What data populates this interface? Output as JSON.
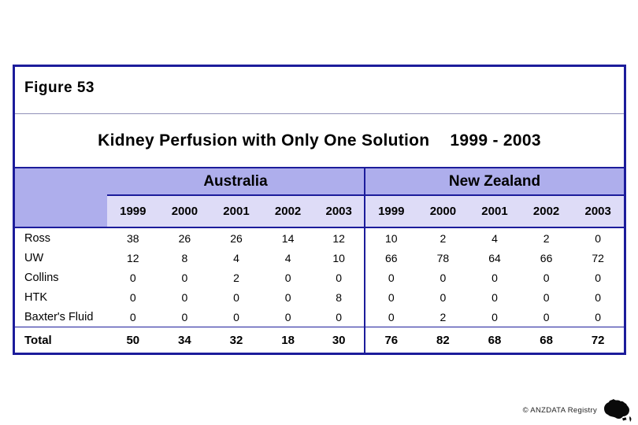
{
  "slide": {
    "figure_label": "Figure 53",
    "title": "Kidney Perfusion with Only One Solution",
    "title_period": "1999 - 2003"
  },
  "table": {
    "group_headers": [
      "Australia",
      "New Zealand"
    ],
    "year_headers": [
      "1999",
      "2000",
      "2001",
      "2002",
      "2003",
      "1999",
      "2000",
      "2001",
      "2002",
      "2003"
    ],
    "rows": [
      {
        "label": "Ross",
        "values": [
          38,
          26,
          26,
          14,
          12,
          10,
          2,
          4,
          2,
          0
        ]
      },
      {
        "label": "UW",
        "values": [
          12,
          8,
          4,
          4,
          10,
          66,
          78,
          64,
          66,
          72
        ]
      },
      {
        "label": "Collins",
        "values": [
          0,
          0,
          2,
          0,
          0,
          0,
          0,
          0,
          0,
          0
        ]
      },
      {
        "label": "HTK",
        "values": [
          0,
          0,
          0,
          0,
          8,
          0,
          0,
          0,
          0,
          0
        ]
      },
      {
        "label": "Baxter's Fluid",
        "values": [
          0,
          0,
          0,
          0,
          0,
          0,
          2,
          0,
          0,
          0
        ]
      }
    ],
    "total_row": {
      "label": "Total",
      "values": [
        50,
        34,
        32,
        18,
        30,
        76,
        82,
        68,
        68,
        72
      ]
    }
  },
  "chart_data": {
    "type": "table",
    "title": "Kidney Perfusion with Only One Solution 1999 - 2003",
    "column_groups": [
      "Australia",
      "New Zealand"
    ],
    "years": [
      1999,
      2000,
      2001,
      2002,
      2003
    ],
    "series": [
      {
        "name": "Ross",
        "australia": [
          38,
          26,
          26,
          14,
          12
        ],
        "new_zealand": [
          10,
          2,
          4,
          2,
          0
        ]
      },
      {
        "name": "UW",
        "australia": [
          12,
          8,
          4,
          4,
          10
        ],
        "new_zealand": [
          66,
          78,
          64,
          66,
          72
        ]
      },
      {
        "name": "Collins",
        "australia": [
          0,
          0,
          2,
          0,
          0
        ],
        "new_zealand": [
          0,
          0,
          0,
          0,
          0
        ]
      },
      {
        "name": "HTK",
        "australia": [
          0,
          0,
          0,
          0,
          8
        ],
        "new_zealand": [
          0,
          0,
          0,
          0,
          0
        ]
      },
      {
        "name": "Baxter's Fluid",
        "australia": [
          0,
          0,
          0,
          0,
          0
        ],
        "new_zealand": [
          0,
          2,
          0,
          0,
          0
        ]
      }
    ],
    "totals": {
      "australia": [
        50,
        34,
        32,
        18,
        30
      ],
      "new_zealand": [
        76,
        82,
        68,
        68,
        72
      ]
    }
  },
  "footer": {
    "copyright": "© ANZDATA Registry",
    "logo": "australia-map-icon"
  },
  "colors": {
    "border_navy": "#1c1c9b",
    "header_fill": "#aeaeec",
    "subheader_fill": "#dedcf7",
    "figure_rule": "#9090b8",
    "background": "#ffffff"
  }
}
